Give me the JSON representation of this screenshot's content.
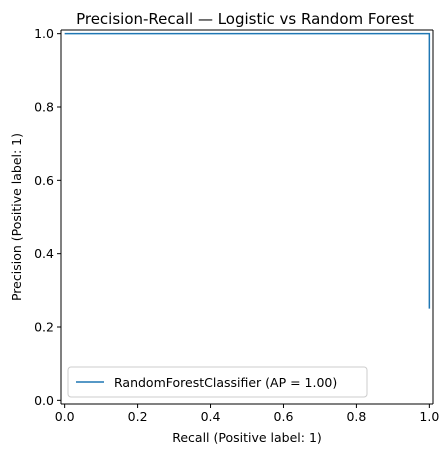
{
  "chart_data": {
    "type": "line",
    "title": "Precision-Recall — Logistic vs Random Forest",
    "xlabel": "Recall (Positive label: 1)",
    "ylabel": "Precision (Positive label: 1)",
    "xlim": [
      -0.01,
      1.01
    ],
    "ylim": [
      -0.01,
      1.01
    ],
    "xticks": [
      "0.0",
      "0.2",
      "0.4",
      "0.6",
      "0.8",
      "1.0"
    ],
    "yticks": [
      "0.0",
      "0.2",
      "0.4",
      "0.6",
      "0.8",
      "1.0"
    ],
    "xtick_values": [
      0.0,
      0.2,
      0.4,
      0.6,
      0.8,
      1.0
    ],
    "ytick_values": [
      0.0,
      0.2,
      0.4,
      0.6,
      0.8,
      1.0
    ],
    "grid": false,
    "legend_position": "lower-left",
    "series": [
      {
        "name": "RandomForestClassifier (AP = 1.00)",
        "color": "#1f77b4",
        "drawstyle": "steps-post",
        "x": [
          0.0,
          1.0,
          1.0
        ],
        "y": [
          1.0,
          1.0,
          0.25
        ]
      }
    ]
  }
}
